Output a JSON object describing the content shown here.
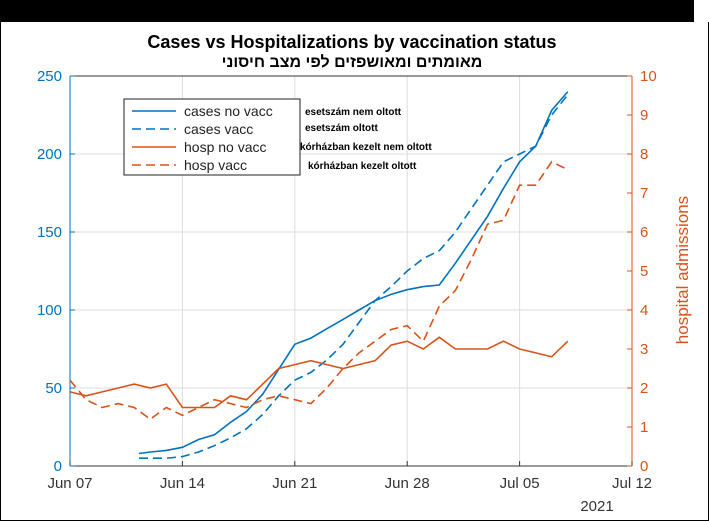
{
  "chart_data": {
    "type": "line",
    "title": "Cases vs Hospitalizations by vaccination status",
    "subtitle": "מאומתים ומאושפזים לפי מצב חיסוני",
    "xlabel": "",
    "ylabel_right": "hospital admissions",
    "x_ticks": [
      "Jun 07",
      "Jun 14",
      "Jun 21",
      "Jun 28",
      "Jul 05",
      "Jul 12"
    ],
    "year_label": "2021",
    "xlim_days": [
      0,
      35
    ],
    "ylim_left": [
      0,
      250
    ],
    "ylim_right": [
      0,
      10
    ],
    "y_ticks_left": [
      "0",
      "50",
      "100",
      "150",
      "200",
      "250"
    ],
    "y_ticks_right": [
      "0",
      "1",
      "2",
      "3",
      "4",
      "5",
      "6",
      "7",
      "8",
      "9",
      "10"
    ],
    "legend_position": "top-left",
    "grid": true,
    "colors": {
      "cases": "#0072BD",
      "hosp": "#D95319"
    },
    "series": [
      {
        "name": "cases no vacc",
        "axis": "left",
        "style": "solid",
        "x": [
          4.3,
          5,
          6,
          7,
          8,
          9,
          10,
          11,
          12,
          13,
          14,
          15,
          16,
          17,
          18,
          19,
          20,
          21,
          22,
          23,
          24,
          25,
          26,
          27,
          28,
          29,
          30,
          31,
          32,
          33,
          33.7
        ],
        "values": [
          8,
          9,
          10,
          12,
          17,
          20,
          28,
          35,
          46,
          62,
          78,
          82,
          88,
          94,
          100,
          106,
          110,
          113,
          115,
          116,
          130,
          145,
          160,
          178,
          195,
          205,
          228,
          240,
          null,
          null,
          null
        ]
      },
      {
        "name": "cases vacc",
        "axis": "left",
        "style": "dashed",
        "x": [
          4.3,
          5,
          6,
          7,
          8,
          9,
          10,
          11,
          12,
          13,
          14,
          15,
          16,
          17,
          18,
          19,
          20,
          21,
          22,
          23,
          24,
          25,
          26,
          27,
          28,
          29,
          30,
          31,
          32,
          33,
          33.7
        ],
        "values": [
          5,
          5,
          5,
          6,
          9,
          13,
          18,
          24,
          33,
          45,
          55,
          60,
          68,
          78,
          92,
          106,
          115,
          125,
          133,
          138,
          150,
          165,
          180,
          195,
          200,
          205,
          225,
          238,
          null,
          null,
          null
        ]
      },
      {
        "name": "hosp no vacc",
        "axis": "right",
        "style": "solid",
        "x": [
          0,
          1,
          2,
          3,
          4,
          5,
          6,
          7,
          8,
          9,
          10,
          11,
          12,
          13,
          14,
          15,
          16,
          17,
          18,
          19,
          20,
          21,
          22,
          23,
          24,
          25,
          26,
          27,
          28,
          29,
          30,
          31
        ],
        "values": [
          1.9,
          1.8,
          1.9,
          2.0,
          2.1,
          2.0,
          2.1,
          1.5,
          1.5,
          1.5,
          1.8,
          1.7,
          2.1,
          2.5,
          2.6,
          2.7,
          2.6,
          2.5,
          2.6,
          2.7,
          3.1,
          3.2,
          3.0,
          3.3,
          3.0,
          3.0,
          3.0,
          3.2,
          3.0,
          2.9,
          2.8,
          3.2
        ]
      },
      {
        "name": "hosp vacc",
        "axis": "right",
        "style": "dashed",
        "x": [
          0,
          1,
          2,
          3,
          4,
          5,
          6,
          7,
          8,
          9,
          10,
          11,
          12,
          13,
          14,
          15,
          16,
          17,
          18,
          19,
          20,
          21,
          22,
          23,
          24,
          25,
          26,
          27,
          28,
          29,
          30,
          31
        ],
        "values": [
          2.2,
          1.7,
          1.5,
          1.6,
          1.5,
          1.2,
          1.5,
          1.3,
          1.5,
          1.7,
          1.6,
          1.5,
          1.7,
          1.8,
          1.7,
          1.6,
          2.0,
          2.5,
          2.9,
          3.2,
          3.5,
          3.6,
          3.2,
          4.1,
          4.5,
          5.3,
          6.2,
          6.3,
          7.2,
          7.2,
          7.8,
          7.6
        ]
      }
    ],
    "annotations": [
      "esetszám nem oltott",
      "esetszám oltott",
      "kórházban kezelt nem oltott",
      "kórházban kezelt oltott"
    ]
  }
}
